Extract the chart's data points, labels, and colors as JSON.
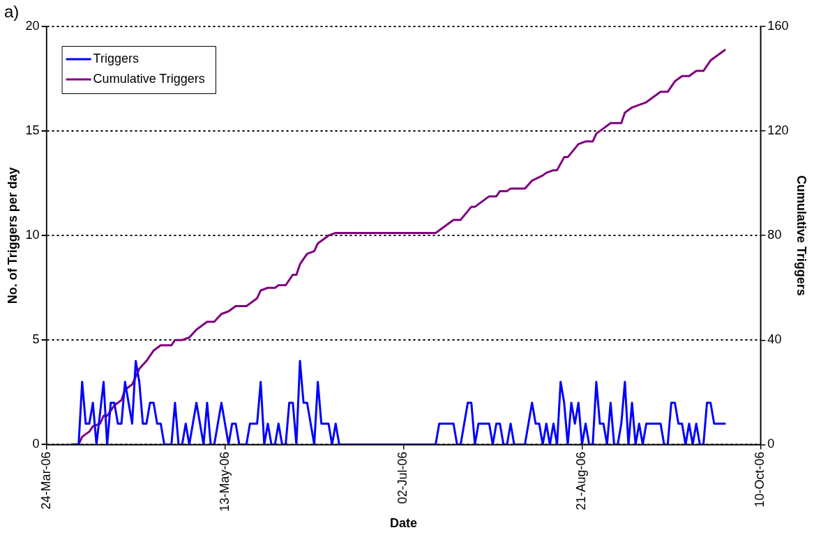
{
  "chart_data": {
    "type": "line",
    "annotations": [
      "a)"
    ],
    "xlabel": "Date",
    "ylabel": "No. of Triggers per day",
    "y2label": "Cumulative Triggers",
    "xlim": [
      "2006-03-24",
      "2006-10-10"
    ],
    "xticks": [
      {
        "value": "2006-03-24",
        "label": "24-Mar-06"
      },
      {
        "value": "2006-05-13",
        "label": "13-May-06"
      },
      {
        "value": "2006-07-02",
        "label": "02-Jul-06"
      },
      {
        "value": "2006-08-21",
        "label": "21-Aug-06"
      },
      {
        "value": "2006-10-10",
        "label": "10-Oct-06"
      }
    ],
    "ylim": [
      0,
      20
    ],
    "yticks": [
      0,
      5,
      10,
      15,
      20
    ],
    "y2lim": [
      0,
      160
    ],
    "y2ticks": [
      0,
      40,
      80,
      120,
      160
    ],
    "grid": "y",
    "legend": "top left",
    "marker": "none",
    "line_style": "solid",
    "series": [
      {
        "name": "Triggers",
        "color": "#0000ff",
        "x": [
          "2006-03-31",
          "2006-04-02",
          "2006-04-03",
          "2006-04-04",
          "2006-04-05",
          "2006-04-06",
          "2006-04-07",
          "2006-04-09",
          "2006-04-10",
          "2006-04-11",
          "2006-04-12",
          "2006-04-13",
          "2006-04-14",
          "2006-04-15",
          "2006-04-17",
          "2006-04-18",
          "2006-04-19",
          "2006-04-20",
          "2006-04-21",
          "2006-04-22",
          "2006-04-23",
          "2006-04-24",
          "2006-04-25",
          "2006-04-26",
          "2006-04-28",
          "2006-04-29",
          "2006-04-30",
          "2006-05-01",
          "2006-05-02",
          "2006-05-03",
          "2006-05-05",
          "2006-05-07",
          "2006-05-08",
          "2006-05-09",
          "2006-05-10",
          "2006-05-12",
          "2006-05-14",
          "2006-05-15",
          "2006-05-16",
          "2006-05-17",
          "2006-05-19",
          "2006-05-20",
          "2006-05-22",
          "2006-05-23",
          "2006-05-24",
          "2006-05-25",
          "2006-05-26",
          "2006-05-27",
          "2006-05-28",
          "2006-05-29",
          "2006-05-30",
          "2006-05-31",
          "2006-06-01",
          "2006-06-02",
          "2006-06-03",
          "2006-06-04",
          "2006-06-05",
          "2006-06-07",
          "2006-06-08",
          "2006-06-09",
          "2006-06-11",
          "2006-06-12",
          "2006-06-13",
          "2006-06-14",
          "2006-07-11",
          "2006-07-12",
          "2006-07-16",
          "2006-07-17",
          "2006-07-18",
          "2006-07-20",
          "2006-07-21",
          "2006-07-22",
          "2006-07-23",
          "2006-07-26",
          "2006-07-27",
          "2006-07-28",
          "2006-07-29",
          "2006-07-30",
          "2006-07-31",
          "2006-08-01",
          "2006-08-02",
          "2006-08-05",
          "2006-08-07",
          "2006-08-08",
          "2006-08-09",
          "2006-08-10",
          "2006-08-11",
          "2006-08-12",
          "2006-08-13",
          "2006-08-14",
          "2006-08-15",
          "2006-08-16",
          "2006-08-17",
          "2006-08-18",
          "2006-08-19",
          "2006-08-20",
          "2006-08-21",
          "2006-08-22",
          "2006-08-23",
          "2006-08-24",
          "2006-08-25",
          "2006-08-26",
          "2006-08-27",
          "2006-08-28",
          "2006-08-29",
          "2006-08-30",
          "2006-08-31",
          "2006-09-01",
          "2006-09-02",
          "2006-09-03",
          "2006-09-04",
          "2006-09-05",
          "2006-09-06",
          "2006-09-07",
          "2006-09-08",
          "2006-09-12",
          "2006-09-13",
          "2006-09-14",
          "2006-09-15",
          "2006-09-16",
          "2006-09-17",
          "2006-09-18",
          "2006-09-19",
          "2006-09-20",
          "2006-09-21",
          "2006-09-22",
          "2006-09-23",
          "2006-09-24",
          "2006-09-25",
          "2006-09-26",
          "2006-09-27",
          "2006-09-30"
        ],
        "values": [
          0,
          0,
          3,
          1,
          1,
          2,
          0,
          3,
          0,
          2,
          2,
          1,
          1,
          3,
          1,
          4,
          3,
          1,
          1,
          2,
          2,
          1,
          1,
          0,
          0,
          2,
          0,
          0,
          1,
          0,
          2,
          0,
          2,
          0,
          0,
          2,
          0,
          1,
          1,
          0,
          0,
          1,
          1,
          3,
          0,
          1,
          0,
          0,
          1,
          0,
          0,
          2,
          2,
          0,
          4,
          2,
          2,
          0,
          3,
          1,
          1,
          0,
          1,
          0,
          0,
          1,
          1,
          0,
          0,
          2,
          2,
          0,
          1,
          1,
          0,
          1,
          1,
          0,
          0,
          1,
          0,
          0,
          2,
          1,
          1,
          0,
          1,
          0,
          1,
          0,
          3,
          2,
          0,
          2,
          1,
          2,
          0,
          1,
          0,
          0,
          3,
          1,
          1,
          0,
          2,
          0,
          0,
          1,
          3,
          0,
          2,
          0,
          1,
          0,
          1,
          1,
          0,
          0,
          2,
          2,
          1,
          1,
          0,
          1,
          0,
          1,
          0,
          0,
          2,
          2,
          1,
          1
        ]
      },
      {
        "name": "Cumulative Triggers",
        "color": "#800080",
        "axis": "y2",
        "x": [
          "2006-03-31",
          "2006-04-02",
          "2006-04-03",
          "2006-04-05",
          "2006-04-06",
          "2006-04-08",
          "2006-04-09",
          "2006-04-10",
          "2006-04-12",
          "2006-04-14",
          "2006-04-15",
          "2006-04-17",
          "2006-04-19",
          "2006-04-21",
          "2006-04-23",
          "2006-04-25",
          "2006-04-28",
          "2006-04-29",
          "2006-05-01",
          "2006-05-03",
          "2006-05-05",
          "2006-05-07",
          "2006-05-08",
          "2006-05-10",
          "2006-05-12",
          "2006-05-14",
          "2006-05-16",
          "2006-05-19",
          "2006-05-22",
          "2006-05-23",
          "2006-05-25",
          "2006-05-27",
          "2006-05-28",
          "2006-05-30",
          "2006-06-01",
          "2006-06-02",
          "2006-06-03",
          "2006-06-05",
          "2006-06-07",
          "2006-06-08",
          "2006-06-11",
          "2006-06-13",
          "2006-07-11",
          "2006-07-16",
          "2006-07-18",
          "2006-07-21",
          "2006-07-22",
          "2006-07-26",
          "2006-07-28",
          "2006-07-29",
          "2006-07-31",
          "2006-08-01",
          "2006-08-05",
          "2006-08-07",
          "2006-08-10",
          "2006-08-11",
          "2006-08-13",
          "2006-08-14",
          "2006-08-16",
          "2006-08-17",
          "2006-08-20",
          "2006-08-22",
          "2006-08-24",
          "2006-08-25",
          "2006-08-27",
          "2006-08-29",
          "2006-09-01",
          "2006-09-02",
          "2006-09-04",
          "2006-09-06",
          "2006-09-08",
          "2006-09-10",
          "2006-09-12",
          "2006-09-14",
          "2006-09-16",
          "2006-09-18",
          "2006-09-20",
          "2006-09-21",
          "2006-09-22",
          "2006-09-24",
          "2006-09-26",
          "2006-09-30"
        ],
        "values": [
          0,
          0,
          3,
          5,
          7,
          8,
          11,
          11,
          15,
          17,
          21,
          23,
          29,
          32,
          36,
          38,
          38,
          40,
          40,
          41,
          44,
          46,
          47,
          47,
          50,
          51,
          53,
          53,
          56,
          59,
          60,
          60,
          61,
          61,
          65,
          65,
          69,
          73,
          74,
          77,
          80,
          81,
          81,
          86,
          86,
          91,
          91,
          95,
          95,
          97,
          97,
          98,
          98,
          101,
          103,
          104,
          105,
          105,
          110,
          110,
          115,
          116,
          116,
          119,
          121,
          123,
          123,
          127,
          129,
          130,
          131,
          133,
          135,
          135,
          139,
          141,
          141,
          142,
          143,
          143,
          147,
          151
        ]
      }
    ]
  }
}
